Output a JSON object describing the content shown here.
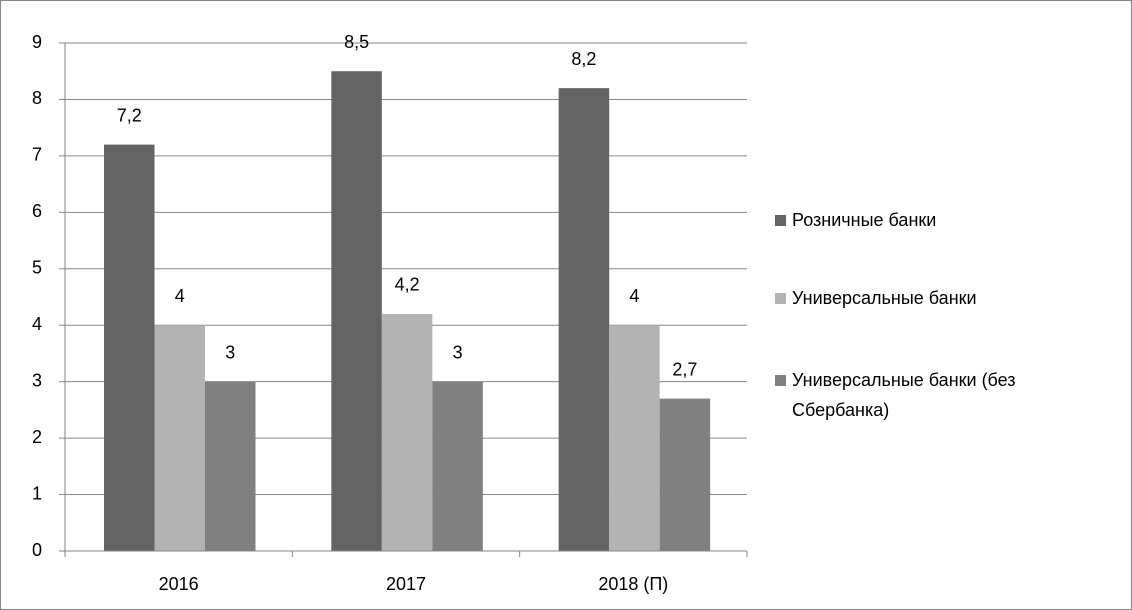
{
  "chart_data": {
    "type": "bar",
    "categories": [
      "2016",
      "2017",
      "2018 (П)"
    ],
    "series": [
      {
        "name": "Розничные банки",
        "color": "#636363",
        "values": [
          7.2,
          8.5,
          8.2
        ],
        "value_labels": [
          "7,2",
          "8,5",
          "8,2"
        ]
      },
      {
        "name": "Универсальные банки",
        "color": "#b3b3b3",
        "values": [
          4,
          4.2,
          4
        ],
        "value_labels": [
          "4",
          "4,2",
          "4"
        ]
      },
      {
        "name": "Универсальные банки (без Сбербанка)",
        "color": "#808080",
        "values": [
          3,
          3,
          2.7
        ],
        "value_labels": [
          "3",
          "3",
          "2,7"
        ]
      }
    ],
    "ylim": [
      0,
      9
    ],
    "yticks": [
      0,
      1,
      2,
      3,
      4,
      5,
      6,
      7,
      8,
      9
    ],
    "grid": true,
    "legend": "right"
  }
}
